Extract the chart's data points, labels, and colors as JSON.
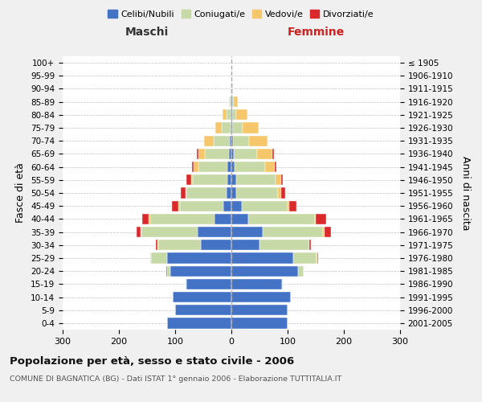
{
  "age_groups": [
    "0-4",
    "5-9",
    "10-14",
    "15-19",
    "20-24",
    "25-29",
    "30-34",
    "35-39",
    "40-44",
    "45-49",
    "50-54",
    "55-59",
    "60-64",
    "65-69",
    "70-74",
    "75-79",
    "80-84",
    "85-89",
    "90-94",
    "95-99",
    "100+"
  ],
  "birth_years": [
    "2001-2005",
    "1996-2000",
    "1991-1995",
    "1986-1990",
    "1981-1985",
    "1976-1980",
    "1971-1975",
    "1966-1970",
    "1961-1965",
    "1956-1960",
    "1951-1955",
    "1946-1950",
    "1941-1945",
    "1936-1940",
    "1931-1935",
    "1926-1930",
    "1921-1925",
    "1916-1920",
    "1911-1915",
    "1906-1910",
    "≤ 1905"
  ],
  "maschi": {
    "celibi": [
      115,
      100,
      105,
      80,
      108,
      115,
      55,
      60,
      30,
      15,
      8,
      7,
      7,
      5,
      3,
      2,
      1,
      1,
      0,
      0,
      0
    ],
    "coniugati": [
      0,
      0,
      0,
      2,
      7,
      28,
      75,
      100,
      115,
      77,
      72,
      62,
      52,
      42,
      28,
      15,
      7,
      2,
      1,
      0,
      0
    ],
    "vedovi": [
      0,
      0,
      0,
      0,
      0,
      1,
      1,
      1,
      2,
      2,
      2,
      3,
      8,
      12,
      18,
      12,
      8,
      2,
      0,
      0,
      0
    ],
    "divorziati": [
      0,
      0,
      0,
      0,
      1,
      1,
      3,
      8,
      12,
      12,
      8,
      8,
      3,
      2,
      0,
      0,
      0,
      0,
      0,
      0,
      0
    ]
  },
  "femmine": {
    "nubili": [
      100,
      100,
      105,
      90,
      118,
      110,
      50,
      55,
      30,
      18,
      8,
      8,
      5,
      4,
      3,
      2,
      1,
      1,
      0,
      0,
      0
    ],
    "coniugate": [
      0,
      0,
      0,
      2,
      10,
      42,
      88,
      108,
      118,
      82,
      75,
      70,
      55,
      42,
      28,
      18,
      8,
      3,
      1,
      1,
      0
    ],
    "vedove": [
      0,
      0,
      0,
      0,
      0,
      1,
      1,
      2,
      2,
      3,
      5,
      10,
      17,
      27,
      33,
      28,
      20,
      8,
      2,
      1,
      0
    ],
    "divorziate": [
      0,
      0,
      0,
      0,
      1,
      1,
      3,
      12,
      18,
      12,
      8,
      3,
      3,
      2,
      0,
      0,
      0,
      0,
      0,
      0,
      0
    ]
  },
  "colors": {
    "celibi": "#4472C4",
    "coniugati": "#c8d9a8",
    "vedovi": "#f5c66a",
    "divorziati": "#d9292b"
  },
  "title": "Popolazione per età, sesso e stato civile - 2006",
  "subtitle": "COMUNE DI BAGNATICA (BG) - Dati ISTAT 1° gennaio 2006 - Elaborazione TUTTITALIA.IT",
  "maschi_label": "Maschi",
  "femmine_label": "Femmine",
  "ylabel_left": "Fasce di età",
  "ylabel_right": "Anni di nascita",
  "xlim": 300,
  "bg_color": "#f0f0f0",
  "plot_bg": "#ffffff",
  "legend_labels": [
    "Celibi/Nubili",
    "Coniugati/e",
    "Vedovi/e",
    "Divorziati/e"
  ]
}
